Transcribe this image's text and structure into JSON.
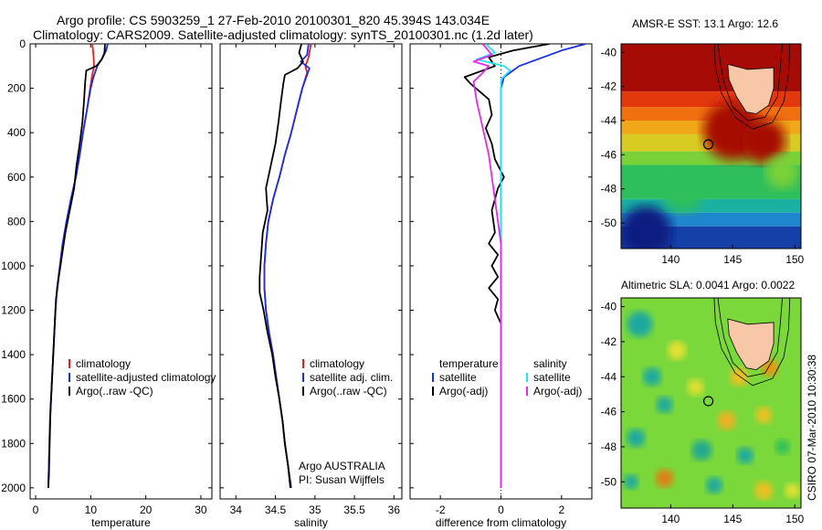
{
  "header": {
    "title_line1": "Argo profile: CS 5903259_1 27-Feb-2010 20100301_820 45.394S 143.034E",
    "title_line2": "Climatology: CARS2009. Satellite-adjusted climatology: synTS_20100301.nc (1.2d later)"
  },
  "map_sst": {
    "title": "AMSR-E SST: 13.1 Argo: 12.6"
  },
  "map_sla": {
    "title": "Altimetric SLA: 0.0041 Argo: 0.0022"
  },
  "credit": "CSIRO 07-Mar-2010 10:30:38",
  "colors": {
    "climatology": "#e8201c",
    "satellite": "#1a2ee6",
    "argo_raw": "#000000",
    "salinity_satellite": "#26e3f0",
    "salinity_argo": "#e62ae6",
    "land": "#f7c7a8"
  },
  "chart_data": [
    {
      "type": "line",
      "name": "temperature-profile",
      "xlabel": "temperature",
      "ylabel": "",
      "xlim": [
        -1,
        32
      ],
      "ylim": [
        2050,
        0
      ],
      "xticks": [
        0,
        10,
        20,
        30
      ],
      "yticks": [
        0,
        200,
        400,
        600,
        800,
        1000,
        1200,
        1400,
        1600,
        1800,
        2000
      ],
      "legend": [
        "climatology",
        "satellite-adjusted climatology",
        "Argo(..raw -QC)"
      ],
      "series": [
        {
          "name": "climatology",
          "color": "#e8201c",
          "points": [
            [
              10.3,
              0
            ],
            [
              10.5,
              50
            ],
            [
              10.6,
              100
            ],
            [
              10.2,
              150
            ],
            [
              9.9,
              200
            ],
            [
              9.3,
              300
            ],
            [
              8.6,
              400
            ],
            [
              8.0,
              500
            ],
            [
              7.3,
              600
            ],
            [
              6.4,
              700
            ],
            [
              5.6,
              800
            ],
            [
              4.9,
              900
            ],
            [
              4.4,
              1000
            ],
            [
              3.9,
              1100
            ],
            [
              3.6,
              1200
            ],
            [
              3.4,
              1300
            ],
            [
              3.2,
              1400
            ],
            [
              3.0,
              1500
            ],
            [
              2.8,
              1600
            ],
            [
              2.6,
              1700
            ],
            [
              2.5,
              1800
            ],
            [
              2.4,
              1900
            ],
            [
              2.3,
              2000
            ]
          ]
        },
        {
          "name": "satellite-adjusted climatology",
          "color": "#1a2ee6",
          "points": [
            [
              13.1,
              0
            ],
            [
              12.8,
              30
            ],
            [
              12.2,
              60
            ],
            [
              11.2,
              100
            ],
            [
              10.5,
              150
            ],
            [
              10.0,
              200
            ],
            [
              9.3,
              300
            ],
            [
              8.6,
              400
            ],
            [
              8.0,
              500
            ],
            [
              7.3,
              600
            ],
            [
              6.4,
              700
            ],
            [
              5.6,
              800
            ],
            [
              4.9,
              900
            ],
            [
              4.4,
              1000
            ],
            [
              3.9,
              1100
            ],
            [
              3.6,
              1200
            ],
            [
              3.4,
              1300
            ],
            [
              3.2,
              1400
            ],
            [
              3.0,
              1500
            ],
            [
              2.8,
              1600
            ],
            [
              2.6,
              1700
            ],
            [
              2.5,
              1800
            ],
            [
              2.4,
              1900
            ],
            [
              2.3,
              2000
            ]
          ]
        },
        {
          "name": "Argo(..raw -QC)",
          "color": "#000000",
          "points": [
            [
              12.6,
              0
            ],
            [
              12.5,
              40
            ],
            [
              12.0,
              70
            ],
            [
              11.0,
              100
            ],
            [
              9.2,
              120
            ],
            [
              9.0,
              170
            ],
            [
              8.8,
              250
            ],
            [
              8.5,
              350
            ],
            [
              8.0,
              450
            ],
            [
              7.4,
              550
            ],
            [
              7.0,
              650
            ],
            [
              6.2,
              750
            ],
            [
              5.4,
              850
            ],
            [
              4.8,
              950
            ],
            [
              4.2,
              1050
            ],
            [
              3.7,
              1150
            ],
            [
              3.5,
              1250
            ],
            [
              3.3,
              1350
            ],
            [
              3.1,
              1450
            ],
            [
              2.9,
              1550
            ],
            [
              2.7,
              1650
            ],
            [
              2.6,
              1750
            ],
            [
              2.5,
              1850
            ],
            [
              2.4,
              1950
            ],
            [
              2.3,
              2000
            ]
          ]
        }
      ]
    },
    {
      "type": "line",
      "name": "salinity-profile",
      "xlabel": "salinity",
      "ylabel": "",
      "xlim": [
        33.8,
        36.1
      ],
      "ylim": [
        2050,
        0
      ],
      "xticks": [
        34,
        34.5,
        35,
        35.5,
        36
      ],
      "xticklabels": [
        "34",
        "34.5",
        "35",
        "35.5",
        "36"
      ],
      "legend": [
        "climatology",
        "satellite adj. clim.",
        "Argo(..raw -QC)"
      ],
      "annotation": [
        "Argo AUSTRALIA",
        "PI: Susan Wijffels"
      ],
      "series": [
        {
          "name": "climatology",
          "color": "#e8201c",
          "points": [
            [
              34.95,
              0
            ],
            [
              34.92,
              60
            ],
            [
              34.88,
              100
            ],
            [
              34.9,
              130
            ],
            [
              34.84,
              200
            ],
            [
              34.77,
              300
            ],
            [
              34.7,
              400
            ],
            [
              34.62,
              500
            ],
            [
              34.55,
              600
            ],
            [
              34.47,
              700
            ],
            [
              34.41,
              800
            ],
            [
              34.38,
              900
            ],
            [
              34.36,
              1000
            ],
            [
              34.36,
              1100
            ],
            [
              34.38,
              1200
            ],
            [
              34.42,
              1300
            ],
            [
              34.47,
              1400
            ],
            [
              34.51,
              1500
            ],
            [
              34.55,
              1600
            ],
            [
              34.59,
              1700
            ],
            [
              34.62,
              1800
            ],
            [
              34.66,
              1900
            ],
            [
              34.69,
              2000
            ]
          ]
        },
        {
          "name": "satellite adj. clim.",
          "color": "#1a2ee6",
          "points": [
            [
              34.92,
              0
            ],
            [
              34.9,
              50
            ],
            [
              34.82,
              80
            ],
            [
              34.93,
              110
            ],
            [
              34.9,
              140
            ],
            [
              34.84,
              200
            ],
            [
              34.77,
              300
            ],
            [
              34.7,
              400
            ],
            [
              34.62,
              500
            ],
            [
              34.55,
              600
            ],
            [
              34.47,
              700
            ],
            [
              34.41,
              800
            ],
            [
              34.38,
              900
            ],
            [
              34.36,
              1000
            ],
            [
              34.36,
              1100
            ],
            [
              34.38,
              1200
            ],
            [
              34.42,
              1300
            ],
            [
              34.47,
              1400
            ],
            [
              34.51,
              1500
            ],
            [
              34.55,
              1600
            ],
            [
              34.59,
              1700
            ],
            [
              34.62,
              1800
            ],
            [
              34.66,
              1900
            ],
            [
              34.7,
              2000
            ]
          ]
        },
        {
          "name": "Argo(..raw -QC)",
          "color": "#000000",
          "points": [
            [
              34.83,
              0
            ],
            [
              34.8,
              40
            ],
            [
              34.85,
              80
            ],
            [
              34.78,
              110
            ],
            [
              34.62,
              140
            ],
            [
              34.6,
              180
            ],
            [
              34.57,
              260
            ],
            [
              34.54,
              350
            ],
            [
              34.5,
              450
            ],
            [
              34.44,
              550
            ],
            [
              34.38,
              650
            ],
            [
              34.4,
              750
            ],
            [
              34.34,
              850
            ],
            [
              34.32,
              950
            ],
            [
              34.3,
              1050
            ],
            [
              34.3,
              1120
            ],
            [
              34.35,
              1200
            ],
            [
              34.4,
              1300
            ],
            [
              34.46,
              1400
            ],
            [
              34.5,
              1500
            ],
            [
              34.55,
              1600
            ],
            [
              34.59,
              1700
            ],
            [
              34.62,
              1800
            ],
            [
              34.66,
              1900
            ],
            [
              34.69,
              2000
            ]
          ]
        }
      ]
    },
    {
      "type": "line",
      "name": "difference-profile",
      "xlabel": "difference from climatology",
      "ylabel": "",
      "xlim": [
        -3,
        3
      ],
      "ylim": [
        2050,
        0
      ],
      "xticks": [
        -2,
        0,
        2
      ],
      "legend_left": [
        "temperature",
        "satellite",
        "Argo(-adj)"
      ],
      "legend_right": [
        "salinity",
        "satellite",
        "Argo(-adj)"
      ],
      "series": [
        {
          "name": "temperature satellite",
          "color": "#1a2ee6",
          "points": [
            [
              2.8,
              0
            ],
            [
              2.0,
              30
            ],
            [
              0.6,
              100
            ],
            [
              0.1,
              150
            ],
            [
              0,
              200
            ],
            [
              0,
              2000
            ]
          ]
        },
        {
          "name": "temperature Argo(-adj)",
          "color": "#000000",
          "points": [
            [
              1.6,
              0
            ],
            [
              0.4,
              30
            ],
            [
              -0.4,
              60
            ],
            [
              -0.2,
              100
            ],
            [
              -1.2,
              150
            ],
            [
              -1.0,
              180
            ],
            [
              -0.4,
              250
            ],
            [
              -0.3,
              320
            ],
            [
              -0.5,
              380
            ],
            [
              -0.3,
              450
            ],
            [
              -0.2,
              520
            ],
            [
              0.1,
              600
            ],
            [
              -0.1,
              650
            ],
            [
              -0.3,
              750
            ],
            [
              -0.2,
              850
            ],
            [
              -0.4,
              900
            ],
            [
              -0.1,
              950
            ],
            [
              -0.3,
              1000
            ],
            [
              -0.1,
              1050
            ],
            [
              -0.4,
              1100
            ],
            [
              -0.1,
              1150
            ],
            [
              -0.2,
              1200
            ],
            [
              0,
              1260
            ],
            [
              0,
              2000
            ]
          ]
        },
        {
          "name": "salinity satellite",
          "color": "#26e3f0",
          "points": [
            [
              -0.5,
              0
            ],
            [
              -0.2,
              40
            ],
            [
              -0.8,
              70
            ],
            [
              0.1,
              100
            ],
            [
              0.3,
              120
            ],
            [
              0,
              160
            ],
            [
              0,
              2000
            ]
          ]
        },
        {
          "name": "salinity Argo(-adj)",
          "color": "#e62ae6",
          "points": [
            [
              -0.6,
              0
            ],
            [
              -0.3,
              50
            ],
            [
              -0.9,
              80
            ],
            [
              -0.4,
              100
            ],
            [
              -0.6,
              130
            ],
            [
              -0.9,
              170
            ],
            [
              -0.8,
              260
            ],
            [
              -0.6,
              380
            ],
            [
              -0.4,
              500
            ],
            [
              -0.3,
              600
            ],
            [
              -0.2,
              700
            ],
            [
              -0.1,
              800
            ],
            [
              0,
              900
            ],
            [
              0,
              2000
            ]
          ]
        }
      ]
    },
    {
      "type": "heatmap",
      "name": "sst-map",
      "title": "AMSR-E SST: 13.1 Argo: 12.6",
      "xlim": [
        136,
        150.5
      ],
      "ylim": [
        -51.5,
        -39.5
      ],
      "xticks": [
        140,
        145,
        150
      ],
      "yticks": [
        -40,
        -42,
        -44,
        -46,
        -48,
        -50
      ],
      "argo_position": [
        143.034,
        -45.394
      ]
    },
    {
      "type": "heatmap",
      "name": "sla-map",
      "title": "Altimetric SLA: 0.0041 Argo: 0.0022",
      "xlim": [
        136,
        150.5
      ],
      "ylim": [
        -51.5,
        -39.5
      ],
      "xticks": [
        140,
        145,
        150
      ],
      "yticks": [
        -40,
        -42,
        -44,
        -46,
        -48,
        -50
      ],
      "argo_position": [
        143.034,
        -45.394
      ]
    }
  ]
}
